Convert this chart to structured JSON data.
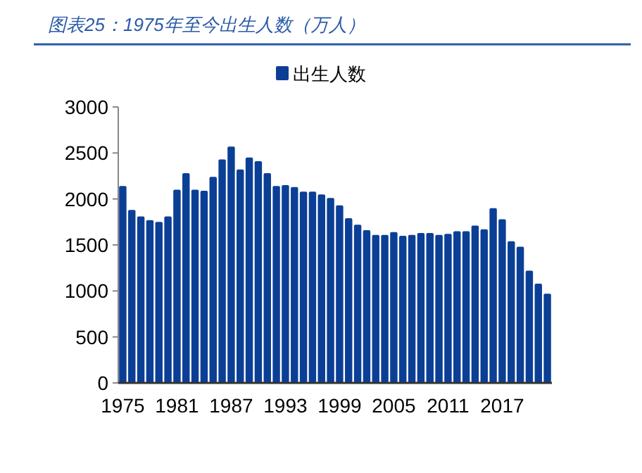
{
  "chart_data": {
    "type": "bar",
    "title": "图表25：1975年至今出生人数（万人）",
    "categories": [
      "1975",
      null,
      null,
      null,
      null,
      null,
      "1981",
      null,
      null,
      null,
      null,
      null,
      "1987",
      null,
      null,
      null,
      null,
      null,
      "1993",
      null,
      null,
      null,
      null,
      null,
      "1999",
      null,
      null,
      null,
      null,
      null,
      "2005",
      null,
      null,
      null,
      null,
      null,
      "2011",
      null,
      null,
      null,
      null,
      null,
      "2017",
      null,
      null,
      null,
      null,
      null
    ],
    "series": [
      {
        "name": "出生人数",
        "color": "#0b3f96",
        "values": [
          2140,
          1880,
          1810,
          1770,
          1750,
          1810,
          2100,
          2280,
          2100,
          2090,
          2240,
          2430,
          2570,
          2320,
          2450,
          2410,
          2280,
          2140,
          2150,
          2130,
          2080,
          2080,
          2050,
          2010,
          1930,
          1790,
          1720,
          1660,
          1610,
          1610,
          1640,
          1600,
          1610,
          1630,
          1630,
          1610,
          1620,
          1650,
          1650,
          1710,
          1670,
          1900,
          1780,
          1540,
          1480,
          1220,
          1080,
          970
        ]
      }
    ],
    "ylim": [
      0,
      3000
    ],
    "yticks": [
      0,
      500,
      1000,
      1500,
      2000,
      2500,
      3000
    ],
    "legend": "top"
  }
}
